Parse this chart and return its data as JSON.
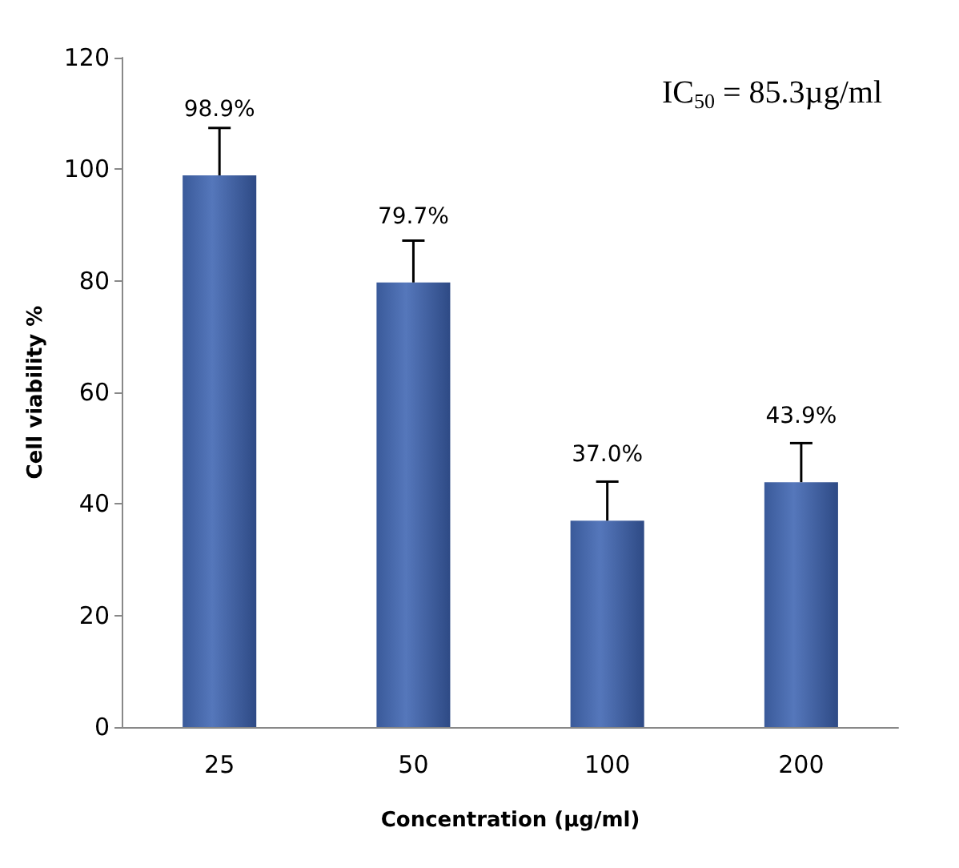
{
  "chart_data": {
    "type": "bar",
    "xlabel": "Concentration (µg/ml)",
    "ylabel": "Cell viability %",
    "annotations": [
      "IC$_{50}$ = 85.3µg/ml"
    ],
    "categories": [
      "25",
      "50",
      "100",
      "200"
    ],
    "values": [
      98.9,
      79.7,
      37.0,
      43.9
    ],
    "value_labels": [
      "98.9%",
      "79.7%",
      "37.0%",
      "43.9%"
    ],
    "errors": [
      [
        98.9,
        107.4
      ],
      [
        79.7,
        87.2
      ],
      [
        37.0,
        44.0
      ],
      [
        43.9,
        50.9
      ]
    ],
    "color": "#5577bb",
    "ylim": [
      0,
      120
    ],
    "yticks": [
      0,
      20,
      40,
      60,
      80,
      100,
      120
    ],
    "grid": false
  }
}
